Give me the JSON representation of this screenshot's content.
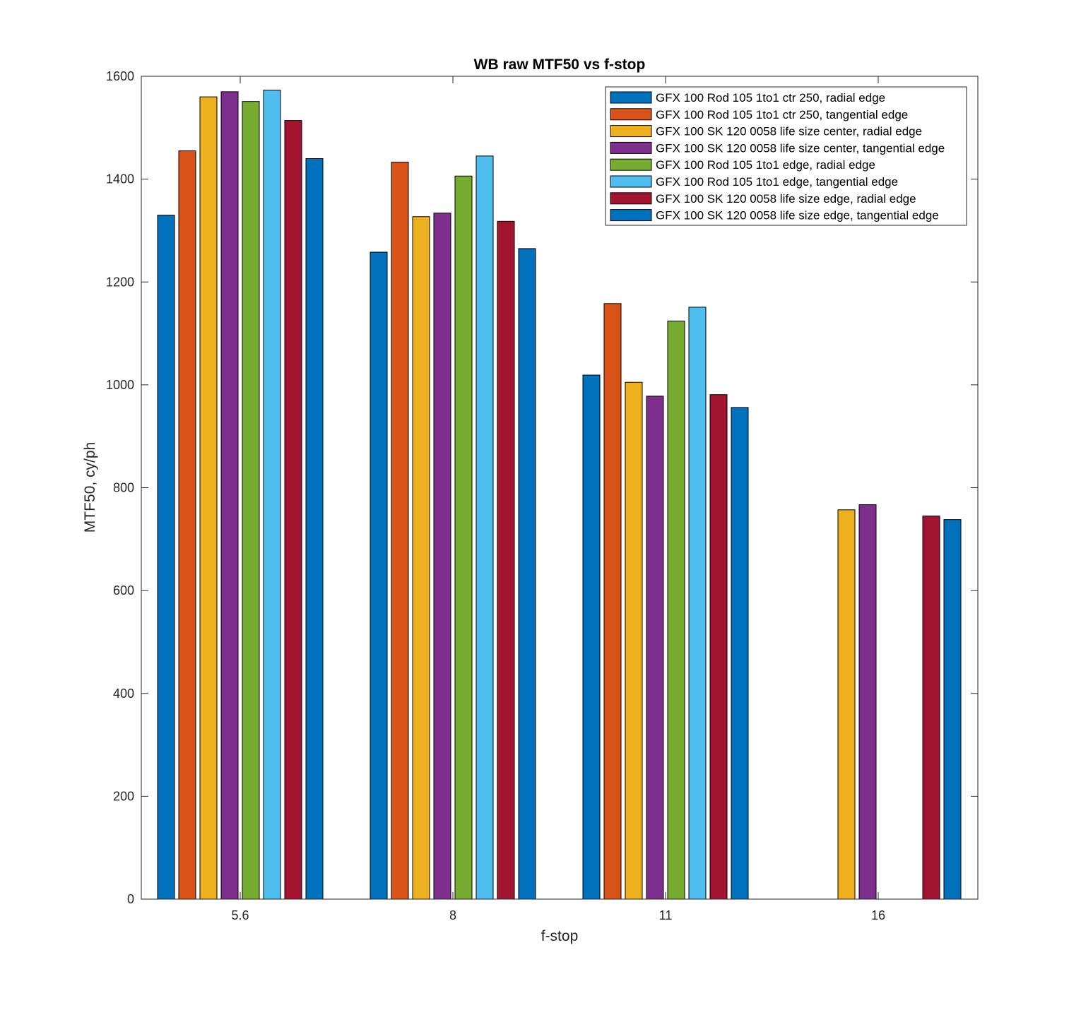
{
  "chart_data": {
    "type": "bar",
    "title": "WB raw MTF50 vs f-stop",
    "xlabel": "f-stop",
    "ylabel": "MTF50, cy/ph",
    "categories": [
      "5.6",
      "8",
      "11",
      "16"
    ],
    "ylim": [
      0,
      1600
    ],
    "yticks": [
      "0",
      "200",
      "400",
      "600",
      "800",
      "1000",
      "1200",
      "1400",
      "1600"
    ],
    "grid": false,
    "legend_position": "top-right",
    "series": [
      {
        "name": "GFX 100 Rod 105 1to1 ctr 250, radial edge",
        "color": "#0072BD",
        "values": [
          1330,
          1258,
          1019,
          null
        ]
      },
      {
        "name": "GFX 100 Rod 105 1to1 ctr 250, tangential edge",
        "color": "#D95319",
        "values": [
          1455,
          1433,
          1158,
          null
        ]
      },
      {
        "name": "GFX 100 SK 120 0058 life size center, radial edge",
        "color": "#EDB120",
        "values": [
          1560,
          1327,
          1005,
          757
        ]
      },
      {
        "name": "GFX 100 SK 120 0058 life size center, tangential edge",
        "color": "#7E2F8E",
        "values": [
          1570,
          1334,
          978,
          767
        ]
      },
      {
        "name": "GFX 100 Rod 105 1to1 edge, radial edge",
        "color": "#77AC30",
        "values": [
          1551,
          1406,
          1124,
          null
        ]
      },
      {
        "name": "GFX 100 Rod 105 1to1 edge, tangential edge",
        "color": "#4DBEEE",
        "values": [
          1573,
          1445,
          1151,
          null
        ]
      },
      {
        "name": "GFX 100 SK 120 0058 life size edge, radial edge",
        "color": "#A2142F",
        "values": [
          1514,
          1318,
          981,
          745
        ]
      },
      {
        "name": "GFX 100 SK 120 0058 life size edge, tangential edge",
        "color": "#0072BD",
        "values": [
          1440,
          1265,
          956,
          738
        ]
      }
    ]
  }
}
